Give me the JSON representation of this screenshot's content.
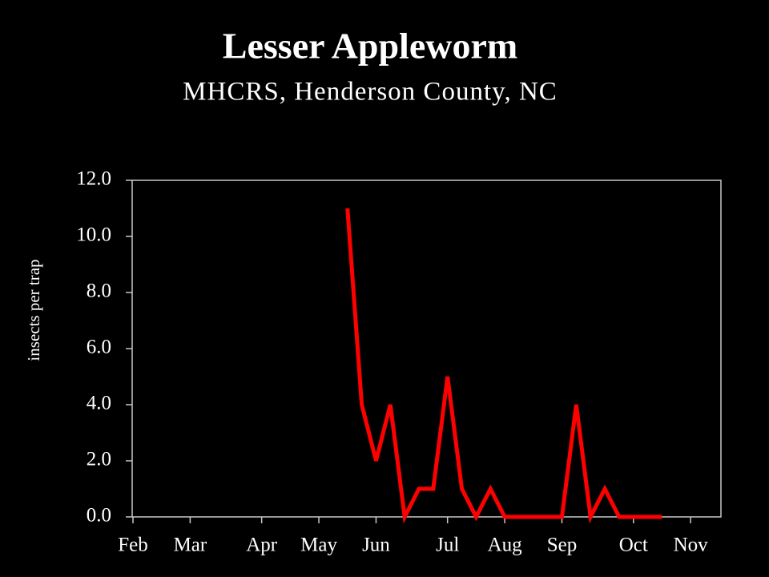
{
  "chart_data": {
    "type": "line",
    "title": "Lesser Appleworm",
    "subtitle": "MHCRS, Henderson County, NC",
    "y_label": "insects per trap",
    "categories": [
      "Feb",
      null,
      null,
      null,
      "Mar",
      null,
      null,
      null,
      null,
      "Apr",
      null,
      null,
      null,
      "May",
      null,
      null,
      null,
      "Jun",
      null,
      null,
      null,
      null,
      "Jul",
      null,
      null,
      null,
      "Aug",
      null,
      null,
      null,
      "Sep",
      null,
      null,
      null,
      null,
      "Oct",
      null,
      null,
      null,
      "Nov",
      null,
      null
    ],
    "series": [
      {
        "color": "#ff0000",
        "values": [
          null,
          null,
          null,
          null,
          null,
          null,
          null,
          null,
          null,
          null,
          null,
          null,
          null,
          null,
          null,
          11.0,
          4.0,
          2.0,
          4.0,
          0.0,
          1.0,
          1.0,
          5.0,
          1.0,
          0.0,
          1.0,
          0.0,
          0.0,
          0.0,
          0.0,
          0.0,
          4.0,
          0.0,
          1.0,
          0.0,
          0.0,
          0.0,
          0.0,
          null,
          null,
          null,
          null
        ]
      }
    ],
    "ylim": [
      0,
      12
    ],
    "yticks": [
      {
        "value": 0,
        "label": "0.0"
      },
      {
        "value": 2,
        "label": "2.0"
      },
      {
        "value": 4,
        "label": "4.0"
      },
      {
        "value": 6,
        "label": "6.0"
      },
      {
        "value": 8,
        "label": "8.0"
      },
      {
        "value": 10,
        "label": "10.0"
      },
      {
        "value": 12,
        "label": "12.0"
      }
    ]
  }
}
